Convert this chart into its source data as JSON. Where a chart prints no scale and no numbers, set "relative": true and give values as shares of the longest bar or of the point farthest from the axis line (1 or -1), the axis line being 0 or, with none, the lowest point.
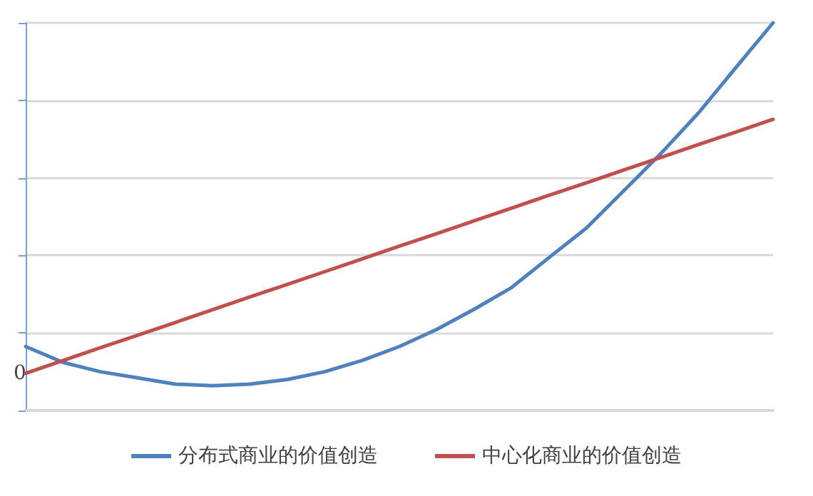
{
  "chart_data": {
    "type": "line",
    "relative": true,
    "categories": [
      null,
      null,
      null,
      null,
      null,
      null,
      null,
      null,
      null,
      null,
      null,
      null,
      null,
      null,
      null,
      null,
      null,
      null,
      null,
      null,
      null
    ],
    "series": [
      {
        "name": "分布式商业的价值创造",
        "color": "#4f81bd",
        "values": [
          0.165,
          0.124,
          0.1,
          0.084,
          0.068,
          0.064,
          0.068,
          0.08,
          0.1,
          0.129,
          0.165,
          0.209,
          0.261,
          0.317,
          0.394,
          0.47,
          0.566,
          0.663,
          0.767,
          0.884,
          1
        ]
      },
      {
        "name": "中心化商业的价值创造",
        "color": "#c0504d",
        "values": [
          0.096,
          0.129,
          0.162,
          0.194,
          0.227,
          0.26,
          0.293,
          0.325,
          0.358,
          0.391,
          0.424,
          0.456,
          0.489,
          0.522,
          0.555,
          0.587,
          0.62,
          0.653,
          0.686,
          0.718,
          0.751
        ]
      }
    ],
    "annotations": [
      "0"
    ],
    "grid": "y",
    "legend": "bottom",
    "marker": "none",
    "line_style": "solid"
  }
}
